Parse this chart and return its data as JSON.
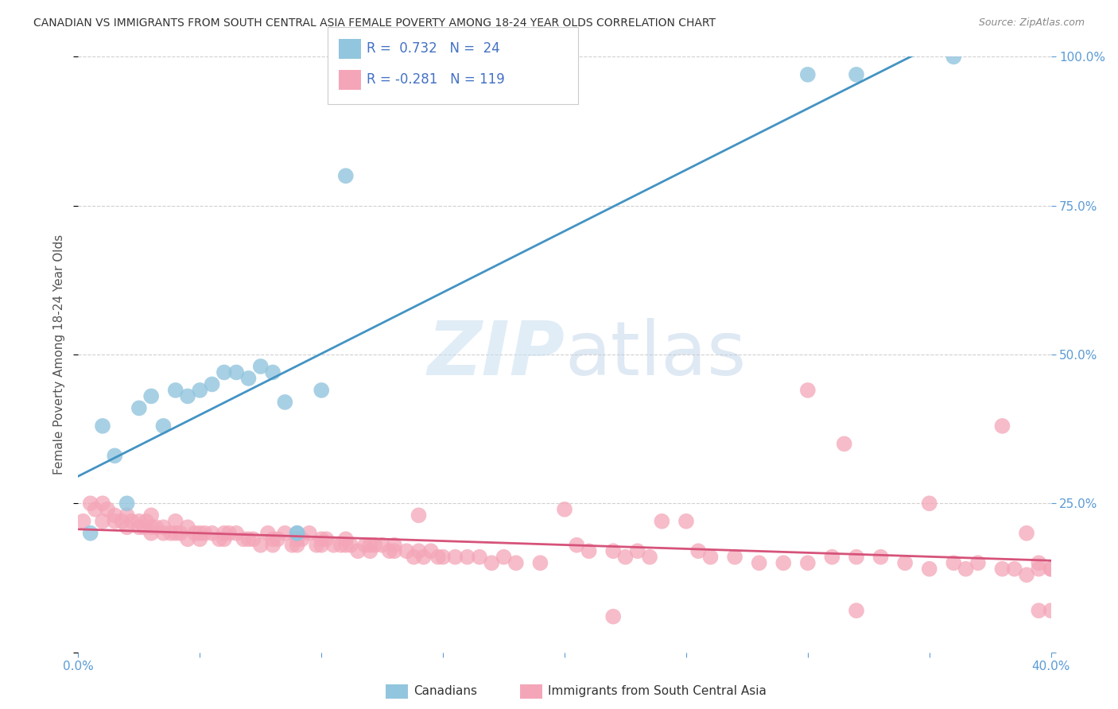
{
  "title": "CANADIAN VS IMMIGRANTS FROM SOUTH CENTRAL ASIA FEMALE POVERTY AMONG 18-24 YEAR OLDS CORRELATION CHART",
  "source": "Source: ZipAtlas.com",
  "ylabel": "Female Poverty Among 18-24 Year Olds",
  "xlim": [
    0.0,
    0.4
  ],
  "ylim": [
    0.0,
    1.0
  ],
  "xticks": [
    0.0,
    0.05,
    0.1,
    0.15,
    0.2,
    0.25,
    0.3,
    0.35,
    0.4
  ],
  "yticks": [
    0.0,
    0.25,
    0.5,
    0.75,
    1.0
  ],
  "ytick_right_labels": [
    "",
    "25.0%",
    "50.0%",
    "75.0%",
    "100.0%"
  ],
  "canadian_R": 0.732,
  "canadian_N": 24,
  "immigrant_R": -0.281,
  "immigrant_N": 119,
  "canadian_color": "#92c5de",
  "immigrant_color": "#f4a6b8",
  "canadian_line_color": "#4393c3",
  "immigrant_line_color": "#d6537a",
  "watermark_zip": "ZIP",
  "watermark_atlas": "atlas",
  "background_color": "#ffffff",
  "grid_color": "#d0d0d0",
  "title_color": "#333333",
  "axis_label_color": "#555555",
  "tick_color": "#5b9bd5",
  "legend_R_color": "#4472c4",
  "canadian_x": [
    0.005,
    0.01,
    0.015,
    0.02,
    0.025,
    0.03,
    0.035,
    0.04,
    0.045,
    0.05,
    0.055,
    0.06,
    0.065,
    0.07,
    0.075,
    0.08,
    0.085,
    0.09,
    0.09,
    0.1,
    0.11,
    0.3,
    0.32,
    0.36
  ],
  "canadian_y": [
    0.2,
    0.38,
    0.33,
    0.25,
    0.41,
    0.43,
    0.38,
    0.44,
    0.43,
    0.44,
    0.45,
    0.47,
    0.47,
    0.46,
    0.48,
    0.47,
    0.42,
    0.2,
    0.2,
    0.44,
    0.8,
    0.97,
    0.97,
    1.0
  ],
  "immigrant_x": [
    0.002,
    0.005,
    0.007,
    0.01,
    0.01,
    0.012,
    0.015,
    0.015,
    0.018,
    0.02,
    0.02,
    0.022,
    0.025,
    0.025,
    0.027,
    0.028,
    0.03,
    0.03,
    0.03,
    0.032,
    0.035,
    0.035,
    0.038,
    0.04,
    0.04,
    0.042,
    0.045,
    0.045,
    0.048,
    0.05,
    0.05,
    0.052,
    0.055,
    0.058,
    0.06,
    0.06,
    0.062,
    0.065,
    0.068,
    0.07,
    0.072,
    0.075,
    0.078,
    0.08,
    0.08,
    0.082,
    0.085,
    0.088,
    0.09,
    0.09,
    0.092,
    0.095,
    0.098,
    0.1,
    0.1,
    0.102,
    0.105,
    0.108,
    0.11,
    0.11,
    0.112,
    0.115,
    0.118,
    0.12,
    0.12,
    0.122,
    0.125,
    0.128,
    0.13,
    0.13,
    0.135,
    0.138,
    0.14,
    0.14,
    0.142,
    0.145,
    0.148,
    0.15,
    0.155,
    0.16,
    0.165,
    0.17,
    0.175,
    0.18,
    0.19,
    0.2,
    0.205,
    0.21,
    0.22,
    0.225,
    0.23,
    0.235,
    0.24,
    0.25,
    0.255,
    0.26,
    0.27,
    0.28,
    0.29,
    0.3,
    0.31,
    0.315,
    0.32,
    0.33,
    0.34,
    0.35,
    0.36,
    0.365,
    0.37,
    0.38,
    0.385,
    0.39,
    0.395,
    0.4,
    0.3,
    0.35,
    0.38,
    0.39,
    0.395,
    0.32,
    0.22,
    0.4,
    0.4,
    0.395
  ],
  "immigrant_y": [
    0.22,
    0.25,
    0.24,
    0.25,
    0.22,
    0.24,
    0.23,
    0.22,
    0.22,
    0.23,
    0.21,
    0.22,
    0.21,
    0.22,
    0.21,
    0.22,
    0.23,
    0.21,
    0.2,
    0.21,
    0.21,
    0.2,
    0.2,
    0.22,
    0.2,
    0.2,
    0.21,
    0.19,
    0.2,
    0.2,
    0.19,
    0.2,
    0.2,
    0.19,
    0.2,
    0.19,
    0.2,
    0.2,
    0.19,
    0.19,
    0.19,
    0.18,
    0.2,
    0.19,
    0.18,
    0.19,
    0.2,
    0.18,
    0.19,
    0.18,
    0.19,
    0.2,
    0.18,
    0.19,
    0.18,
    0.19,
    0.18,
    0.18,
    0.19,
    0.18,
    0.18,
    0.17,
    0.18,
    0.18,
    0.17,
    0.18,
    0.18,
    0.17,
    0.18,
    0.17,
    0.17,
    0.16,
    0.23,
    0.17,
    0.16,
    0.17,
    0.16,
    0.16,
    0.16,
    0.16,
    0.16,
    0.15,
    0.16,
    0.15,
    0.15,
    0.24,
    0.18,
    0.17,
    0.17,
    0.16,
    0.17,
    0.16,
    0.22,
    0.22,
    0.17,
    0.16,
    0.16,
    0.15,
    0.15,
    0.15,
    0.16,
    0.35,
    0.16,
    0.16,
    0.15,
    0.14,
    0.15,
    0.14,
    0.15,
    0.14,
    0.14,
    0.13,
    0.15,
    0.14,
    0.44,
    0.25,
    0.38,
    0.2,
    0.14,
    0.07,
    0.06,
    0.14,
    0.07,
    0.07
  ]
}
